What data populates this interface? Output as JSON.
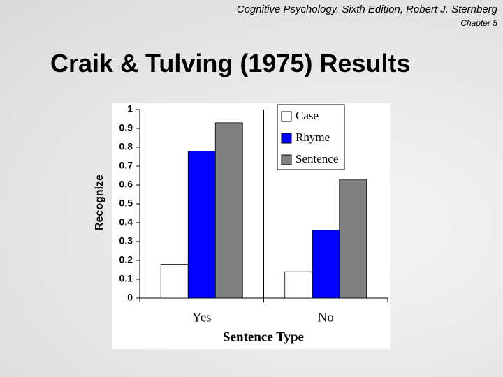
{
  "header": {
    "source": "Cognitive Psychology, Sixth Edition, Robert J. Sternberg",
    "chapter": "Chapter 5"
  },
  "chart_data": {
    "type": "bar",
    "title": "Craik & Tulving (1975) Results",
    "y_label": "Recognize",
    "x_label": "Sentence Type",
    "categories": [
      "Yes",
      "No"
    ],
    "series": [
      {
        "name": "Case",
        "color": "#ffffff",
        "values": [
          0.18,
          0.14
        ]
      },
      {
        "name": "Rhyme",
        "color": "#0000ff",
        "values": [
          0.78,
          0.36
        ]
      },
      {
        "name": "Sentence",
        "color": "#808080",
        "values": [
          0.93,
          0.63
        ]
      }
    ],
    "ylim": [
      0,
      1
    ],
    "yticks": [
      0,
      0.1,
      0.2,
      0.3,
      0.4,
      0.5,
      0.6,
      0.7,
      0.8,
      0.9,
      1
    ],
    "legend": "upper right"
  }
}
